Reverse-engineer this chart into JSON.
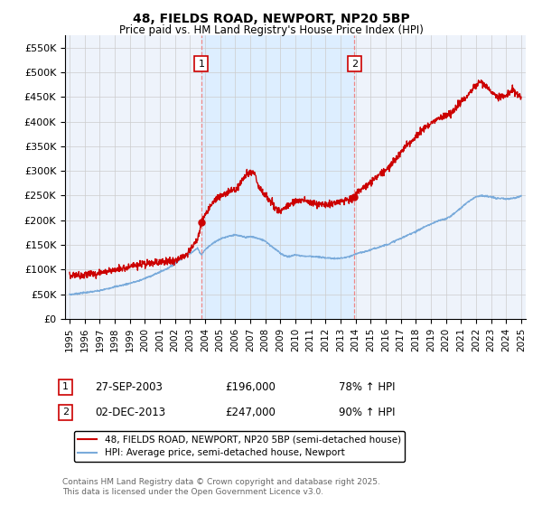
{
  "title": "48, FIELDS ROAD, NEWPORT, NP20 5BP",
  "subtitle": "Price paid vs. HM Land Registry's House Price Index (HPI)",
  "red_label": "48, FIELDS ROAD, NEWPORT, NP20 5BP (semi-detached house)",
  "blue_label": "HPI: Average price, semi-detached house, Newport",
  "footer": "Contains HM Land Registry data © Crown copyright and database right 2025.\nThis data is licensed under the Open Government Licence v3.0.",
  "annotation1": {
    "num": "1",
    "date": "27-SEP-2003",
    "price": "£196,000",
    "hpi": "78% ↑ HPI"
  },
  "annotation2": {
    "num": "2",
    "date": "02-DEC-2013",
    "price": "£247,000",
    "hpi": "90% ↑ HPI"
  },
  "vline1_x": 2003.75,
  "vline2_x": 2013.92,
  "point1_x": 2003.75,
  "point1_y": 196000,
  "point2_x": 2013.92,
  "point2_y": 247000,
  "ylim": [
    0,
    575000
  ],
  "xlim_start": 1994.7,
  "xlim_end": 2025.3,
  "yticks": [
    0,
    50000,
    100000,
    150000,
    200000,
    250000,
    300000,
    350000,
    400000,
    450000,
    500000,
    550000
  ],
  "ytick_labels": [
    "£0",
    "£50K",
    "£100K",
    "£150K",
    "£200K",
    "£250K",
    "£300K",
    "£350K",
    "£400K",
    "£450K",
    "£500K",
    "£550K"
  ],
  "xticks": [
    1995,
    1996,
    1997,
    1998,
    1999,
    2000,
    2001,
    2002,
    2003,
    2004,
    2005,
    2006,
    2007,
    2008,
    2009,
    2010,
    2011,
    2012,
    2013,
    2014,
    2015,
    2016,
    2017,
    2018,
    2019,
    2020,
    2021,
    2022,
    2023,
    2024,
    2025
  ],
  "red_color": "#cc0000",
  "blue_color": "#7aabdb",
  "shade_color": "#ddeeff",
  "vline_color": "#ee8888",
  "background_color": "#eef3fb",
  "grid_color": "#cccccc"
}
